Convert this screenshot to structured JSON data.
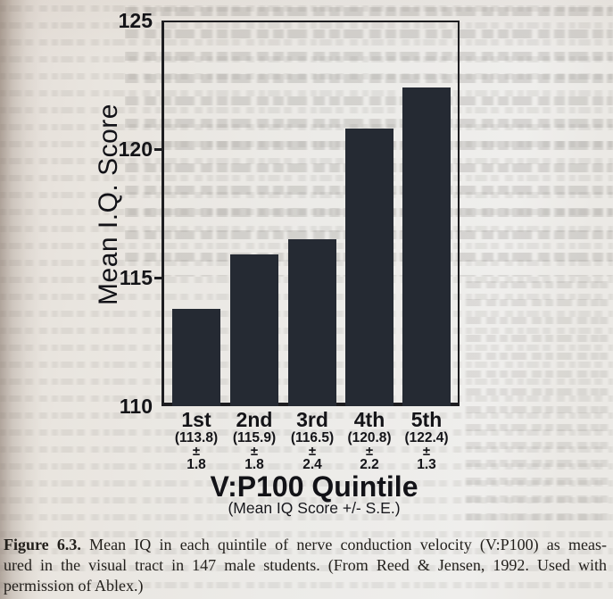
{
  "chart_data": {
    "type": "bar",
    "title": "",
    "categories": [
      "1st",
      "2nd",
      "3rd",
      "4th",
      "5th"
    ],
    "values": [
      113.8,
      115.9,
      116.5,
      120.8,
      122.4
    ],
    "standard_errors": [
      1.8,
      1.8,
      2.4,
      2.2,
      1.3
    ],
    "value_labels": [
      "(113.8)",
      "(115.9)",
      "(116.5)",
      "(120.8)",
      "(122.4)"
    ],
    "se_labels": [
      "1.8",
      "1.8",
      "2.4",
      "2.2",
      "1.3"
    ],
    "plus_minus": "±",
    "xlabel": "V:P100 Quintile",
    "xlabel_sub": "(Mean IQ Score +/- S.E.)",
    "ylabel": "Mean I.Q. Score",
    "ylim": [
      110,
      125
    ],
    "yticks": [
      125,
      120,
      115,
      110
    ],
    "grid": false,
    "legend": null,
    "bar_color": "#252a33",
    "axis_color": "#1d1d20"
  },
  "caption": {
    "label": "Figure 6.3.",
    "line1_rest": "Mean IQ in each quintile of nerve conduction velocity (V:P100) as meas-",
    "line2": "ured in the visual tract in 147 male students. (From Reed & Jensen, 1992. Used with",
    "line3": "permission of Ablex.)"
  },
  "colors": {
    "page_background": "#ebe7e2",
    "bar": "#252a33",
    "axis": "#1d1d20",
    "text": "#14141a"
  }
}
